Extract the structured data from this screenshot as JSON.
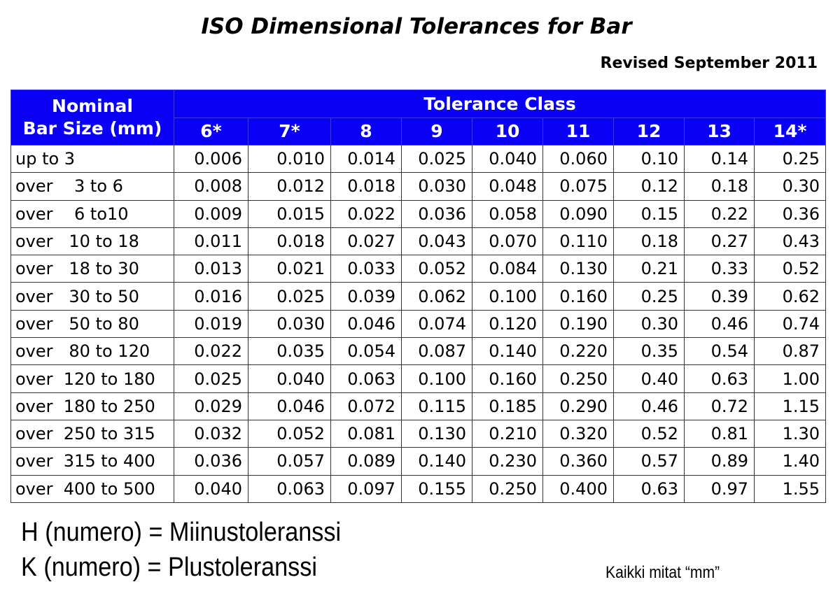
{
  "title": "ISO Dimensional Tolerances for Bar",
  "revised": "Revised September 2011",
  "table": {
    "size_header_line1": "Nominal",
    "size_header_line2": "Bar Size (mm)",
    "group_header": "Tolerance Class",
    "classes": [
      "6*",
      "7*",
      "8",
      "9",
      "10",
      "11",
      "12",
      "13",
      "14*"
    ],
    "rows": [
      {
        "size": "up to 3",
        "values": [
          "0.006",
          "0.010",
          "0.014",
          "0.025",
          "0.040",
          "0.060",
          "0.10",
          "0.14",
          "0.25"
        ]
      },
      {
        "size": "over    3 to 6",
        "values": [
          "0.008",
          "0.012",
          "0.018",
          "0.030",
          "0.048",
          "0.075",
          "0.12",
          "0.18",
          "0.30"
        ]
      },
      {
        "size": "over    6 to10",
        "values": [
          "0.009",
          "0.015",
          "0.022",
          "0.036",
          "0.058",
          "0.090",
          "0.15",
          "0.22",
          "0.36"
        ]
      },
      {
        "size": "over   10 to 18",
        "values": [
          "0.011",
          "0.018",
          "0.027",
          "0.043",
          "0.070",
          "0.110",
          "0.18",
          "0.27",
          "0.43"
        ]
      },
      {
        "size": "over   18 to 30",
        "values": [
          "0.013",
          "0.021",
          "0.033",
          "0.052",
          "0.084",
          "0.130",
          "0.21",
          "0.33",
          "0.52"
        ]
      },
      {
        "size": "over   30 to 50",
        "values": [
          "0.016",
          "0.025",
          "0.039",
          "0.062",
          "0.100",
          "0.160",
          "0.25",
          "0.39",
          "0.62"
        ]
      },
      {
        "size": "over   50 to 80",
        "values": [
          "0.019",
          "0.030",
          "0.046",
          "0.074",
          "0.120",
          "0.190",
          "0.30",
          "0.46",
          "0.74"
        ]
      },
      {
        "size": "over   80 to 120",
        "values": [
          "0.022",
          "0.035",
          "0.054",
          "0.087",
          "0.140",
          "0.220",
          "0.35",
          "0.54",
          "0.87"
        ]
      },
      {
        "size": "over  120 to 180",
        "values": [
          "0.025",
          "0.040",
          "0.063",
          "0.100",
          "0.160",
          "0.250",
          "0.40",
          "0.63",
          "1.00"
        ]
      },
      {
        "size": "over  180 to 250",
        "values": [
          "0.029",
          "0.046",
          "0.072",
          "0.115",
          "0.185",
          "0.290",
          "0.46",
          "0.72",
          "1.15"
        ]
      },
      {
        "size": "over  250 to 315",
        "values": [
          "0.032",
          "0.052",
          "0.081",
          "0.130",
          "0.210",
          "0.320",
          "0.52",
          "0.81",
          "1.30"
        ]
      },
      {
        "size": "over  315 to 400",
        "values": [
          "0.036",
          "0.057",
          "0.089",
          "0.140",
          "0.230",
          "0.360",
          "0.57",
          "0.89",
          "1.40"
        ]
      },
      {
        "size": "over  400 to 500",
        "values": [
          "0.040",
          "0.063",
          "0.097",
          "0.155",
          "0.250",
          "0.400",
          "0.63",
          "0.97",
          "1.55"
        ]
      }
    ]
  },
  "notes": {
    "h_line": "H (numero) = Miinustoleranssi",
    "k_line": "K (numero) = Plustoleranssi",
    "units": "Kaikki mitat “mm”"
  },
  "colors": {
    "header_bg": "#0a00f5",
    "header_text": "#ffffff"
  }
}
